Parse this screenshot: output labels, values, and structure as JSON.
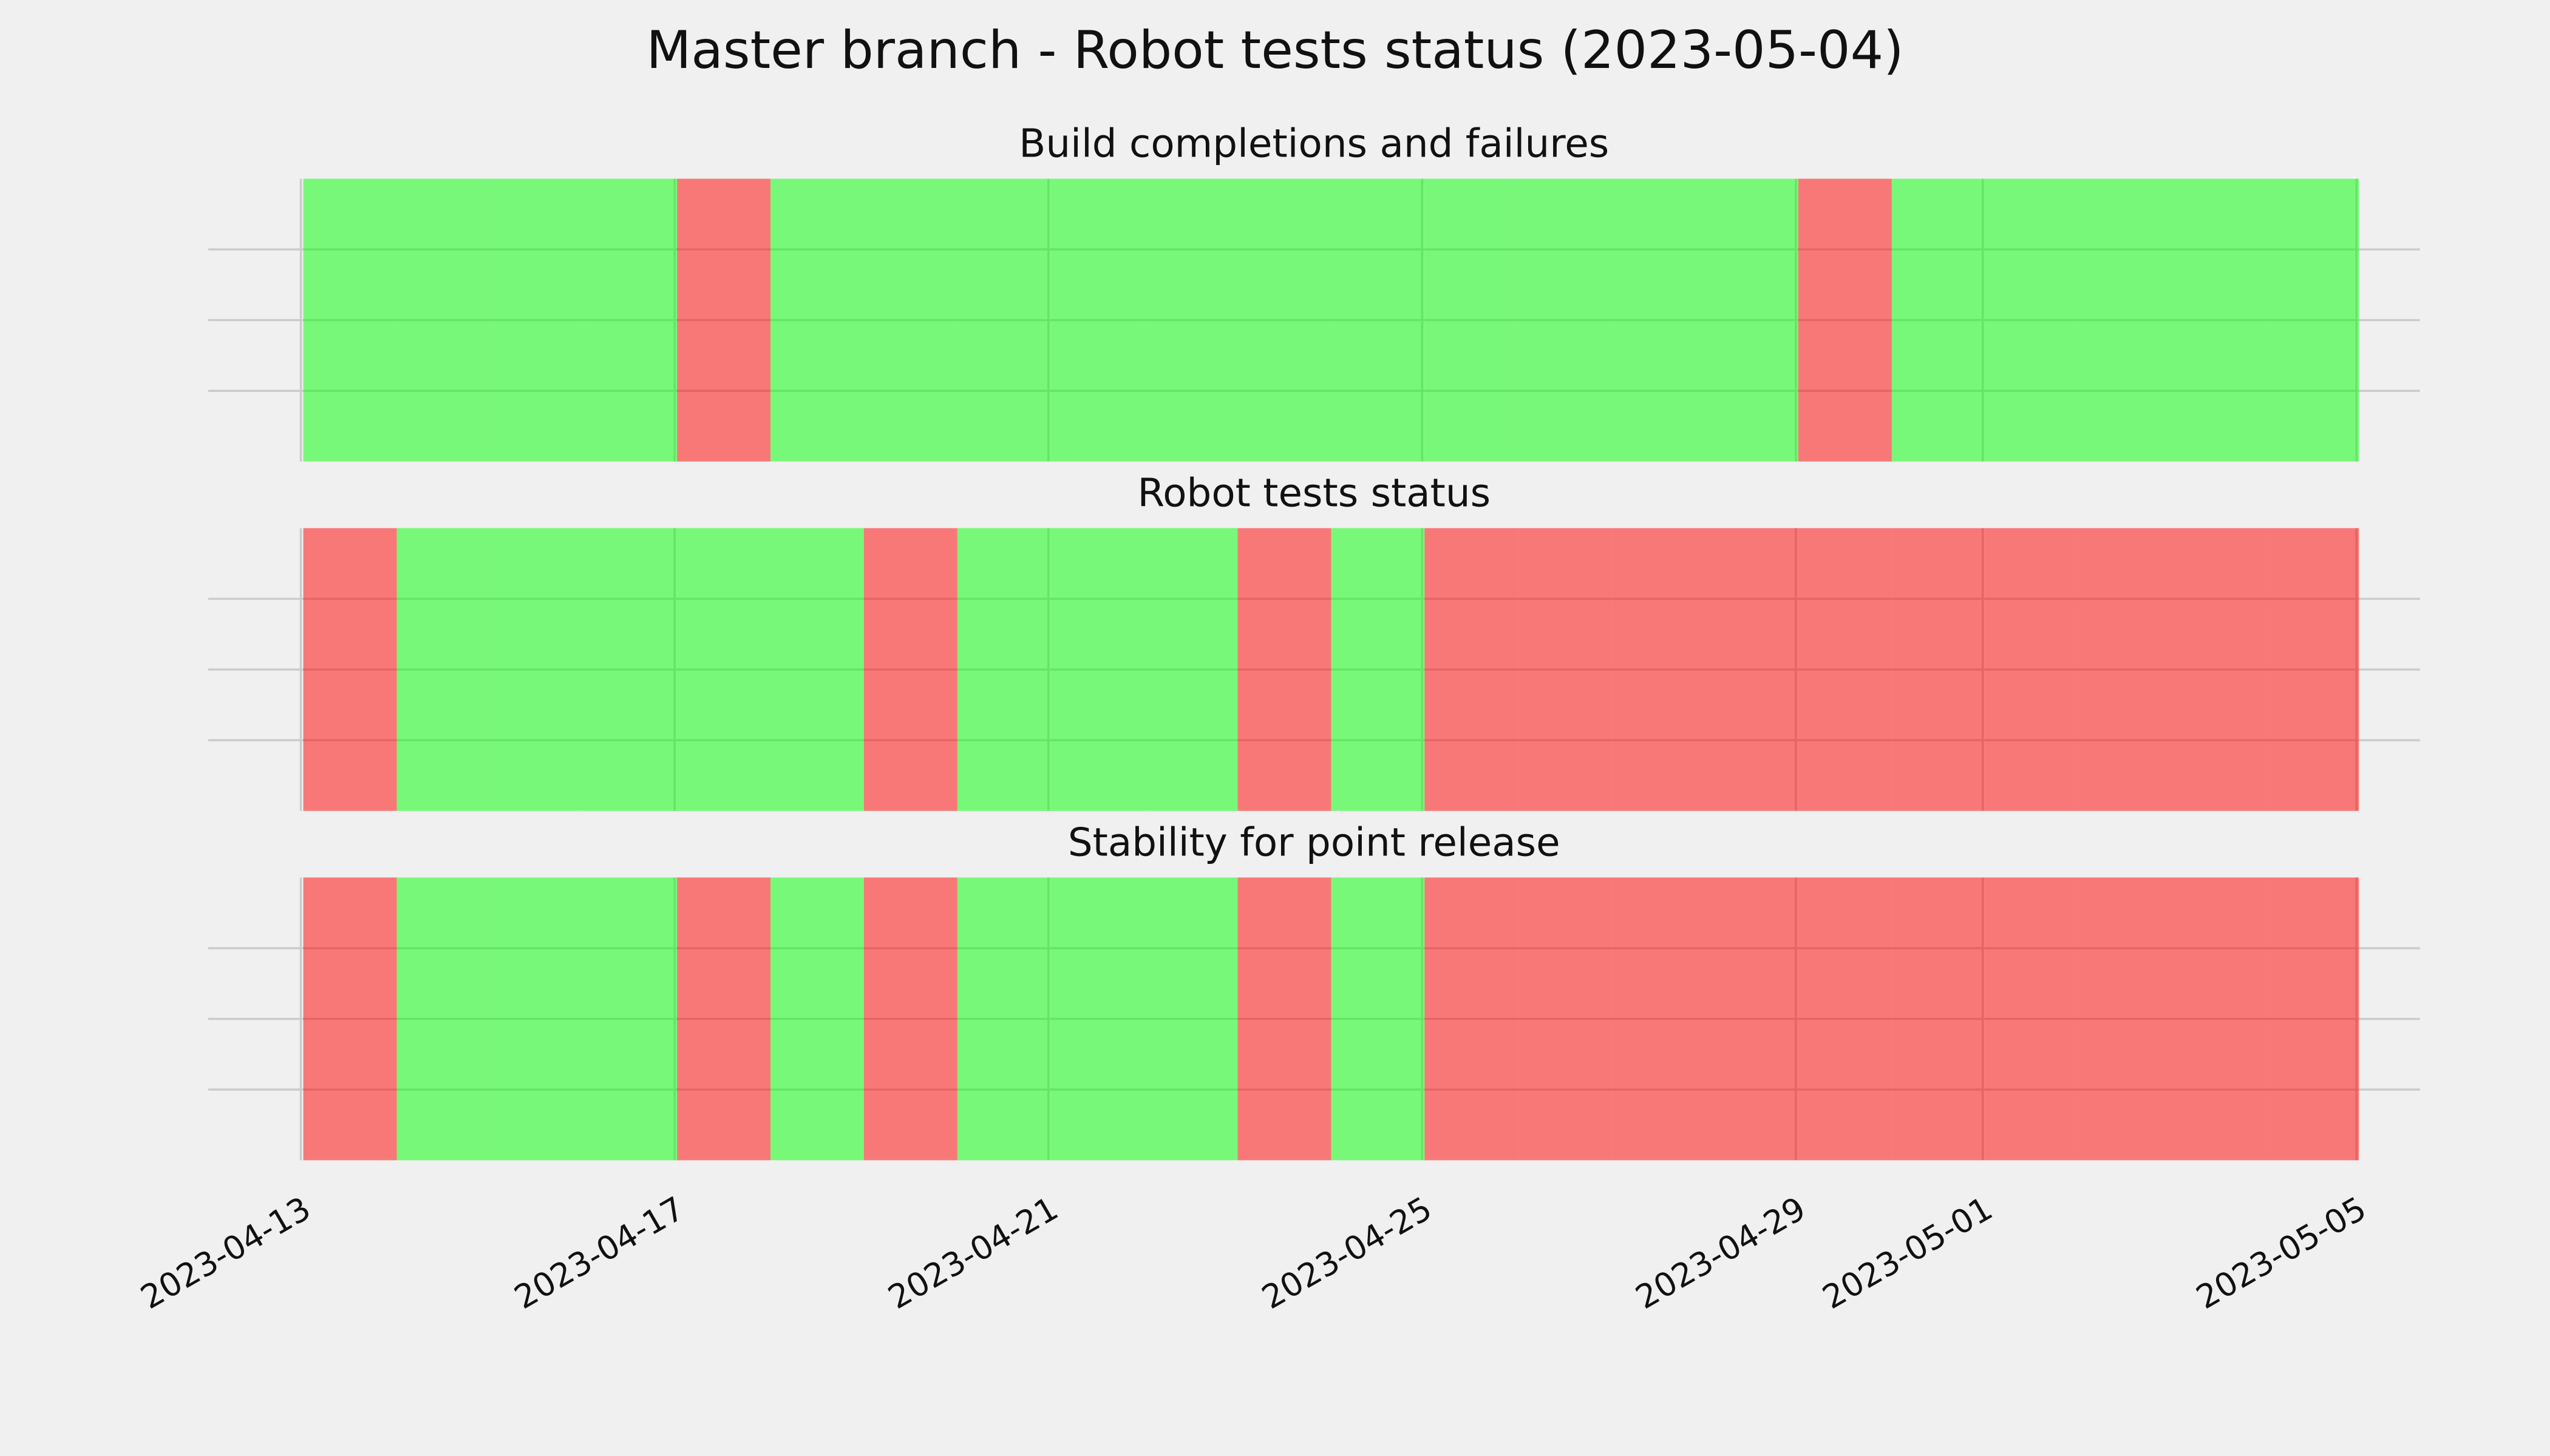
{
  "chart_data": {
    "type": "status-timeline",
    "title": "Master branch - Robot tests status (2023-05-04)",
    "x": [
      "2023-04-13",
      "2023-04-14",
      "2023-04-15",
      "2023-04-16",
      "2023-04-17",
      "2023-04-18",
      "2023-04-19",
      "2023-04-20",
      "2023-04-21",
      "2023-04-22",
      "2023-04-23",
      "2023-04-24",
      "2023-04-25",
      "2023-04-26",
      "2023-04-27",
      "2023-04-28",
      "2023-04-29",
      "2023-04-30",
      "2023-05-01",
      "2023-05-02",
      "2023-05-03",
      "2023-05-04"
    ],
    "xlim": [
      "2023-04-13",
      "2023-05-05"
    ],
    "xticks": [
      "2023-04-13",
      "2023-04-17",
      "2023-04-21",
      "2023-04-25",
      "2023-04-29",
      "2023-05-01",
      "2023-05-05"
    ],
    "ylim": [
      0,
      1
    ],
    "yticks": [
      0.25,
      0.5,
      0.75
    ],
    "grid": true,
    "colors": {
      "pass": "#00ff00",
      "fail": "#ff0000"
    },
    "alpha": 0.5,
    "panels": [
      {
        "title": "Build completions and failures",
        "statuses": [
          "pass",
          "pass",
          "pass",
          "pass",
          "fail",
          "pass",
          "pass",
          "pass",
          "pass",
          "pass",
          "pass",
          "pass",
          "pass",
          "pass",
          "pass",
          "pass",
          "fail",
          "pass",
          "pass",
          "pass",
          "pass",
          "pass"
        ]
      },
      {
        "title": "Robot tests status",
        "statuses": [
          "fail",
          "pass",
          "pass",
          "pass",
          "pass",
          "pass",
          "fail",
          "pass",
          "pass",
          "pass",
          "fail",
          "pass",
          "fail",
          "fail",
          "fail",
          "fail",
          "fail",
          "fail",
          "fail",
          "fail",
          "fail",
          "fail"
        ]
      },
      {
        "title": "Stability for point release",
        "statuses": [
          "fail",
          "pass",
          "pass",
          "pass",
          "fail",
          "pass",
          "fail",
          "pass",
          "pass",
          "pass",
          "fail",
          "pass",
          "fail",
          "fail",
          "fail",
          "fail",
          "fail",
          "fail",
          "fail",
          "fail",
          "fail",
          "fail"
        ]
      }
    ]
  }
}
